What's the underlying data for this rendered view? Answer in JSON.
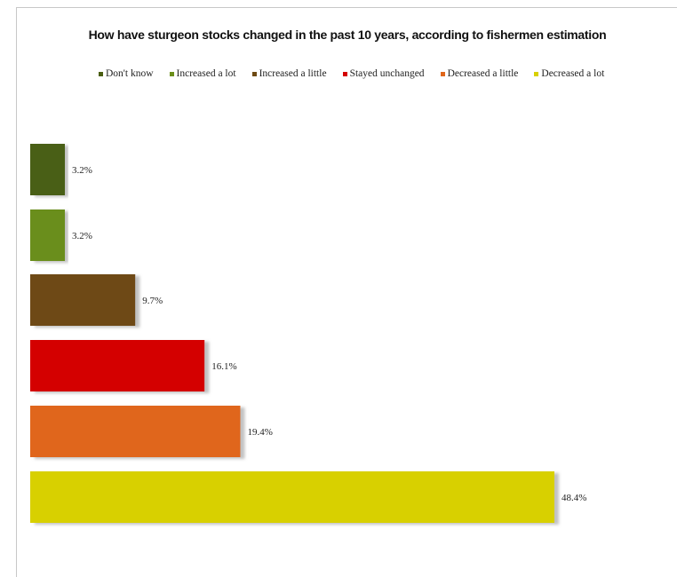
{
  "chart_data": {
    "type": "bar",
    "orientation": "horizontal",
    "title": "How have sturgeon stocks changed in the past 10 years, according to fishermen estimation",
    "xlabel": "",
    "ylabel": "",
    "legend_position": "top",
    "grid": false,
    "xlim": [
      0,
      50
    ],
    "categories": [
      "Don't know",
      "Increased a lot",
      "Increased a little",
      "Stayed unchanged",
      "Decreased a little",
      "Decreased a lot"
    ],
    "values": [
      3.2,
      3.2,
      9.7,
      16.1,
      19.4,
      48.4
    ],
    "value_labels": [
      "3.2%",
      "3.2%",
      "9.7%",
      "16.1%",
      "19.4%",
      "48.4%"
    ],
    "colors": [
      "#4a5e12",
      "#6b8e1a",
      "#6e4a12",
      "#d40000",
      "#e0661a",
      "#d8d000"
    ]
  }
}
